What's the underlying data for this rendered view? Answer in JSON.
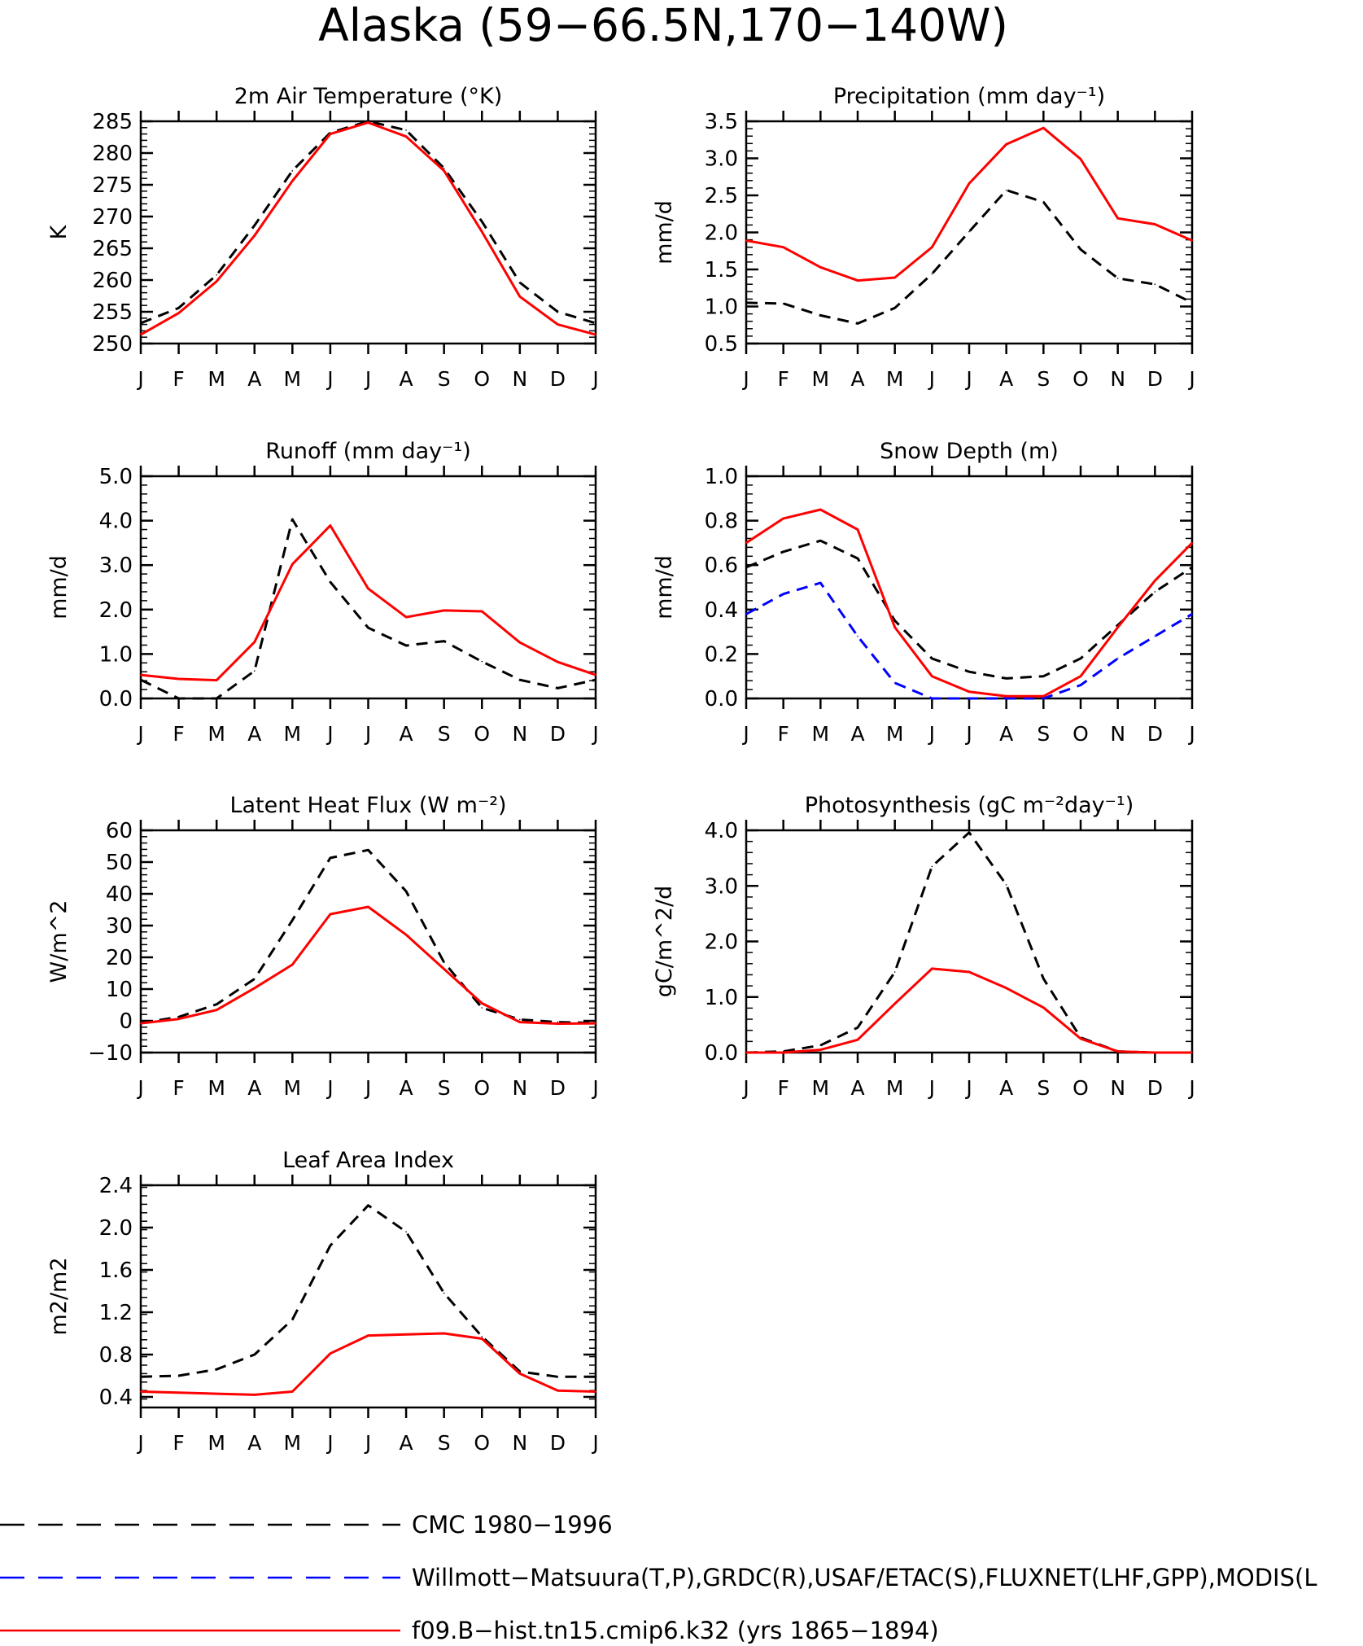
{
  "figure": {
    "title": "Alaska (59−66.5N,170−140W)"
  },
  "months": [
    "J",
    "F",
    "M",
    "A",
    "M",
    "J",
    "J",
    "A",
    "S",
    "O",
    "N",
    "D",
    "J"
  ],
  "legend": [
    {
      "label": "CMC 1980−1996",
      "color": "#000000",
      "dash": "long"
    },
    {
      "label": "Willmott−Matsuura(T,P),GRDC(R),USAF/ETAC(S),FLUXNET(LHF,GPP),MODIS(L",
      "color": "#0000ff",
      "dash": "long"
    },
    {
      "label": "f09.B−hist.tn15.cmip6.k32 (yrs 1865−1894)",
      "color": "#ff0000",
      "dash": "solid"
    }
  ],
  "colors": {
    "obs_black": "#000000",
    "obs_blue": "#0000ff",
    "model_red": "#ff0000"
  },
  "chart_data": [
    {
      "type": "line",
      "title": "2m Air Temperature (°K)",
      "ylabel": "K",
      "ylim": [
        250,
        285
      ],
      "yticks": [
        250,
        255,
        260,
        265,
        270,
        275,
        280,
        285
      ],
      "ytick_labels": [
        "250",
        "255",
        "260",
        "265",
        "270",
        "275",
        "280",
        "285"
      ],
      "series": [
        {
          "color": "#000000",
          "dash": "dashed",
          "values": [
            253.2,
            255.6,
            260.8,
            268.6,
            277.2,
            283.2,
            285.0,
            283.6,
            277.6,
            269.2,
            259.6,
            255.0,
            253.2
          ]
        },
        {
          "color": "#ff0000",
          "dash": "solid",
          "values": [
            251.4,
            254.8,
            259.8,
            267.0,
            275.6,
            283.0,
            284.8,
            282.6,
            277.2,
            267.6,
            257.4,
            253.0,
            251.4
          ]
        }
      ]
    },
    {
      "type": "line",
      "title": "Precipitation (mm day⁻¹)",
      "ylabel": "mm/d",
      "ylim": [
        0.5,
        3.5
      ],
      "yticks": [
        0.5,
        1.0,
        1.5,
        2.0,
        2.5,
        3.0,
        3.5
      ],
      "ytick_labels": [
        "0.5",
        "1.0",
        "1.5",
        "2.0",
        "2.5",
        "3.0",
        "3.5"
      ],
      "series": [
        {
          "color": "#000000",
          "dash": "dashed",
          "values": [
            1.05,
            1.04,
            0.88,
            0.77,
            0.98,
            1.44,
            2.01,
            2.57,
            2.41,
            1.77,
            1.38,
            1.3,
            1.05
          ]
        },
        {
          "color": "#ff0000",
          "dash": "solid",
          "values": [
            1.89,
            1.8,
            1.53,
            1.35,
            1.39,
            1.8,
            2.66,
            3.19,
            3.41,
            2.99,
            2.19,
            2.11,
            1.89
          ]
        }
      ]
    },
    {
      "type": "line",
      "title": "Runoff (mm day⁻¹)",
      "ylabel": "mm/d",
      "ylim": [
        0,
        5
      ],
      "yticks": [
        0,
        1,
        2,
        3,
        4,
        5
      ],
      "ytick_labels": [
        "0.0",
        "1.0",
        "2.0",
        "3.0",
        "4.0",
        "5.0"
      ],
      "series": [
        {
          "color": "#000000",
          "dash": "dashed",
          "values": [
            0.42,
            0.0,
            0.0,
            0.62,
            4.03,
            2.62,
            1.59,
            1.19,
            1.29,
            0.83,
            0.42,
            0.23,
            0.42
          ]
        },
        {
          "color": "#ff0000",
          "dash": "solid",
          "values": [
            0.53,
            0.44,
            0.41,
            1.27,
            3.02,
            3.89,
            2.47,
            1.83,
            1.98,
            1.96,
            1.26,
            0.82,
            0.53
          ]
        }
      ]
    },
    {
      "type": "line",
      "title": "Snow Depth (m)",
      "ylabel": "mm/d",
      "ylim": [
        0,
        1
      ],
      "yticks": [
        0,
        0.2,
        0.4,
        0.6,
        0.8,
        1.0
      ],
      "ytick_labels": [
        "0.0",
        "0.2",
        "0.4",
        "0.6",
        "0.8",
        "1.0"
      ],
      "series": [
        {
          "color": "#000000",
          "dash": "dashed",
          "values": [
            0.59,
            0.66,
            0.71,
            0.63,
            0.35,
            0.18,
            0.12,
            0.09,
            0.1,
            0.18,
            0.33,
            0.48,
            0.59
          ]
        },
        {
          "color": "#0000ff",
          "dash": "dashed",
          "values": [
            0.38,
            0.47,
            0.52,
            0.28,
            0.07,
            0.0,
            0.0,
            0.0,
            0.0,
            0.06,
            0.18,
            0.28,
            0.38
          ]
        },
        {
          "color": "#ff0000",
          "dash": "solid",
          "values": [
            0.7,
            0.81,
            0.85,
            0.76,
            0.32,
            0.1,
            0.03,
            0.01,
            0.01,
            0.1,
            0.32,
            0.53,
            0.7
          ]
        }
      ]
    },
    {
      "type": "line",
      "title": "Latent Heat Flux (W m⁻²)",
      "ylabel": "W/m^2",
      "ylim": [
        -10,
        60
      ],
      "yticks": [
        -10,
        0,
        10,
        20,
        30,
        40,
        50,
        60
      ],
      "ytick_labels": [
        "−10",
        "0",
        "10",
        "20",
        "30",
        "40",
        "50",
        "60"
      ],
      "series": [
        {
          "color": "#000000",
          "dash": "dashed",
          "values": [
            -0.7,
            1.2,
            5.2,
            13.2,
            31.7,
            51.3,
            53.8,
            40.8,
            18.4,
            4.1,
            0.4,
            -0.4,
            -0.7
          ]
        },
        {
          "color": "#ff0000",
          "dash": "solid",
          "values": [
            -0.8,
            0.6,
            3.4,
            10.3,
            17.7,
            33.6,
            35.9,
            27.1,
            16.3,
            5.5,
            -0.4,
            -0.9,
            -0.8
          ]
        }
      ]
    },
    {
      "type": "line",
      "title": "Photosynthesis (gC m⁻²day⁻¹)",
      "ylabel": "gC/m^2/d",
      "ylim": [
        0,
        4
      ],
      "yticks": [
        0,
        1,
        2,
        3,
        4
      ],
      "ytick_labels": [
        "0.0",
        "1.0",
        "2.0",
        "3.0",
        "4.0"
      ],
      "series": [
        {
          "color": "#000000",
          "dash": "dashed",
          "values": [
            0.0,
            0.02,
            0.13,
            0.45,
            1.45,
            3.35,
            3.96,
            3.02,
            1.33,
            0.27,
            0.02,
            0.0,
            0.0
          ]
        },
        {
          "color": "#ff0000",
          "dash": "solid",
          "values": [
            0.0,
            0.0,
            0.05,
            0.23,
            0.88,
            1.51,
            1.45,
            1.16,
            0.81,
            0.25,
            0.02,
            0.0,
            0.0
          ]
        }
      ]
    },
    {
      "type": "line",
      "title": "Leaf Area Index",
      "ylabel": "m2/m2",
      "ylim": [
        0.3,
        2.4
      ],
      "yticks": [
        0.4,
        0.8,
        1.2,
        1.6,
        2.0,
        2.4
      ],
      "ytick_labels": [
        "0.4",
        "0.8",
        "1.2",
        "1.6",
        "2.0",
        "2.4"
      ],
      "series": [
        {
          "color": "#000000",
          "dash": "dashed",
          "values": [
            0.59,
            0.6,
            0.66,
            0.8,
            1.13,
            1.83,
            2.21,
            1.96,
            1.38,
            0.97,
            0.64,
            0.59,
            0.59
          ]
        },
        {
          "color": "#ff0000",
          "dash": "solid",
          "values": [
            0.45,
            0.44,
            0.43,
            0.42,
            0.45,
            0.81,
            0.98,
            0.99,
            1.0,
            0.95,
            0.62,
            0.46,
            0.45
          ]
        }
      ]
    }
  ]
}
